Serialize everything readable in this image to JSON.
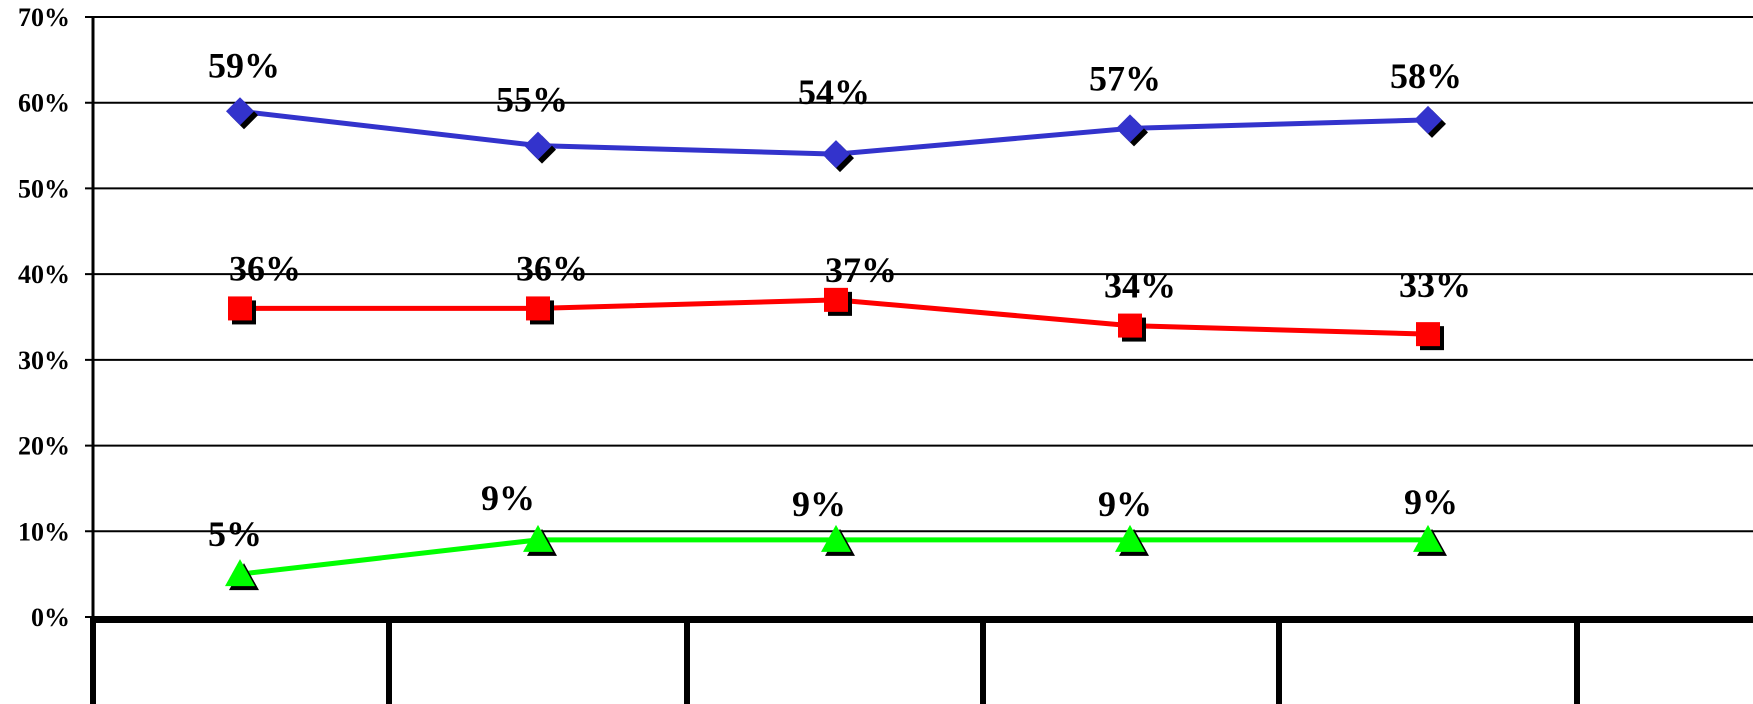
{
  "chart_data": {
    "type": "line",
    "title": "",
    "xlabel": "",
    "ylabel": "",
    "categories": [
      "",
      "",
      "",
      "",
      ""
    ],
    "ylim": [
      0,
      70
    ],
    "y_ticks": [
      0,
      10,
      20,
      30,
      40,
      50,
      60,
      70
    ],
    "y_tick_labels": [
      "0%",
      "10%",
      "20%",
      "30%",
      "40%",
      "50%",
      "60%",
      "70%"
    ],
    "grid": true,
    "legend": "none",
    "series": [
      {
        "values": [
          59,
          55,
          54,
          57,
          58
        ],
        "labels": [
          "59%",
          "55%",
          "54%",
          "57%",
          "58%"
        ],
        "color": "#3333cc",
        "marker": "diamond"
      },
      {
        "values": [
          36,
          36,
          37,
          34,
          33
        ],
        "labels": [
          "36%",
          "36%",
          "37%",
          "34%",
          "33%"
        ],
        "color": "#ff0000",
        "marker": "square"
      },
      {
        "values": [
          5,
          9,
          9,
          9,
          9
        ],
        "labels": [
          "5%",
          "9%",
          "9%",
          "9%",
          "9%"
        ],
        "color": "#00ff00",
        "marker": "triangle"
      }
    ]
  }
}
